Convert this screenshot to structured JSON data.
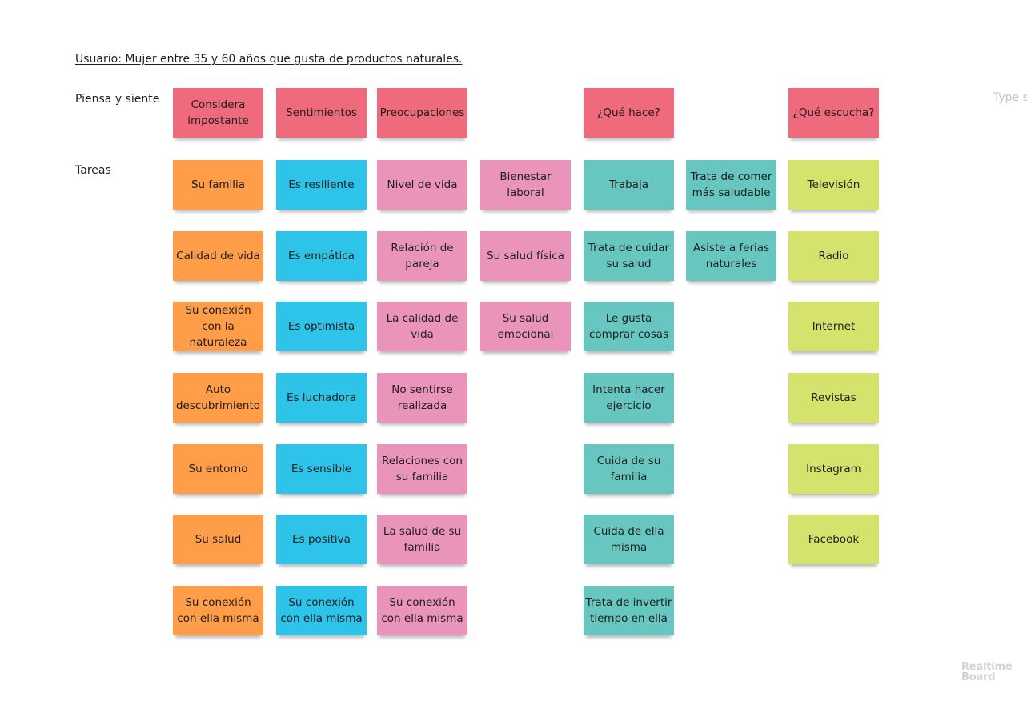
{
  "board": {
    "title": "Usuario: Mujer entre 35 y 60 años que gusta de productos naturales.",
    "row_labels": [
      "Piensa y siente",
      "Tareas"
    ],
    "type_hint": "Type s",
    "logo": [
      "Realtime",
      "Board"
    ]
  },
  "colors": {
    "red": "#ee6a7c",
    "orange": "#ff9d48",
    "blue": "#2ec3e8",
    "pink": "#ea94bb",
    "teal": "#67c6c0",
    "lime": "#d5e26c"
  },
  "header_notes": [
    "Considera impostante",
    "Sentimientos",
    "Preocupaciones",
    "¿Qué hace?",
    "¿Qué escucha?"
  ],
  "columns": {
    "family": [
      "Su familia",
      "Calidad de vida",
      "Su conexión con la naturaleza",
      "Auto descubrimiento",
      "Su entorno",
      "Su salud",
      "Su conexión con ella misma"
    ],
    "feelings": [
      "Es resiliente",
      "Es empática",
      "Es optimista",
      "Es luchadora",
      "Es sensible",
      "Es positiva",
      "Su conexión con ella misma"
    ],
    "worries": [
      "Nivel de vida",
      "Relación de pareja",
      "La calidad de vida",
      "No sentirse realizada",
      "Relaciones con su familia",
      "La salud de su familia",
      "Su conexión con ella misma"
    ],
    "worries_extra": [
      "Bienestar laboral",
      "Su salud física",
      "Su salud emocional"
    ],
    "does": [
      "Trabaja",
      "Trata de cuidar su salud",
      "Le gusta comprar cosas",
      "Intenta hacer ejercicio",
      "Cuida de su familia",
      "Cuida de ella misma",
      "Trata de invertir tiempo en ella"
    ],
    "does_extra": [
      "Trata de comer más saludable",
      "Asiste a ferias naturales"
    ],
    "listens": [
      "Televisión",
      "Radio",
      "Internet",
      "Revistas",
      "Instagram",
      "Facebook"
    ]
  }
}
